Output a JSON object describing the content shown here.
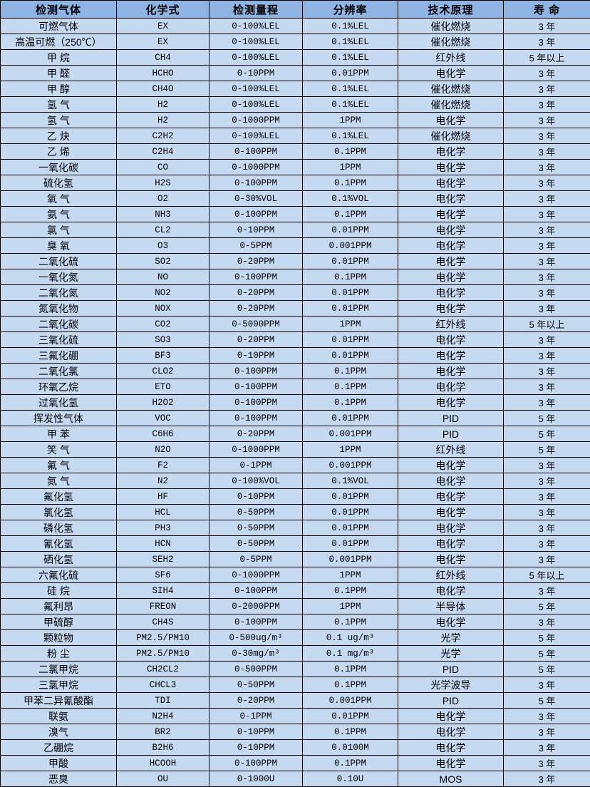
{
  "colors": {
    "header_bg": "#8DB4E2",
    "row_bg": "#C5D9F1",
    "border": "#000000",
    "text": "#000000"
  },
  "table": {
    "headers": [
      "检测气体",
      "化学式",
      "检测量程",
      "分辨率",
      "技术原理",
      "寿 命"
    ],
    "rows": [
      [
        "可燃气体",
        "EX",
        "0-100%LEL",
        "0.1%LEL",
        "催化燃烧",
        "3 年"
      ],
      [
        "高温可燃（250℃）",
        "EX",
        "0-100%LEL",
        "0.1%LEL",
        "催化燃烧",
        "3 年"
      ],
      [
        "甲 烷",
        "CH4",
        "0-100%LEL",
        "0.1%LEL",
        "红外线",
        "5 年以上"
      ],
      [
        "甲 醛",
        "HCHO",
        "0-10PPM",
        "0.01PPM",
        "电化学",
        "3 年"
      ],
      [
        "甲 醇",
        "CH4O",
        "0-100%LEL",
        "0.1%LEL",
        "催化燃烧",
        "3 年"
      ],
      [
        "氢 气",
        "H2",
        "0-100%LEL",
        "0.1%LEL",
        "催化燃烧",
        "3 年"
      ],
      [
        "氢 气",
        "H2",
        "0-1000PPM",
        "1PPM",
        "电化学",
        "3 年"
      ],
      [
        "乙 炔",
        "C2H2",
        "0-100%LEL",
        "0.1%LEL",
        "催化燃烧",
        "3 年"
      ],
      [
        "乙 烯",
        "C2H4",
        "0-100PPM",
        "0.1PPM",
        "电化学",
        "3 年"
      ],
      [
        "一氧化碳",
        "CO",
        "0-1000PPM",
        "1PPM",
        "电化学",
        "3 年"
      ],
      [
        "硫化氢",
        "H2S",
        "0-100PPM",
        "0.1PPM",
        "电化学",
        "3 年"
      ],
      [
        "氧 气",
        "O2",
        "0-30%VOL",
        "0.1%VOL",
        "电化学",
        "3 年"
      ],
      [
        "氨 气",
        "NH3",
        "0-100PPM",
        "0.1PPM",
        "电化学",
        "3 年"
      ],
      [
        "氯 气",
        "CL2",
        "0-10PPM",
        "0.01PPM",
        "电化学",
        "3 年"
      ],
      [
        "臭 氧",
        "O3",
        "0-5PPM",
        "0.001PPM",
        "电化学",
        "3 年"
      ],
      [
        "二氧化硫",
        "SO2",
        "0-20PPM",
        "0.01PPM",
        "电化学",
        "3 年"
      ],
      [
        "一氧化氮",
        "NO",
        "0-100PPM",
        "0.1PPM",
        "电化学",
        "3 年"
      ],
      [
        "二氧化氮",
        "NO2",
        "0-20PPM",
        "0.01PPM",
        "电化学",
        "3 年"
      ],
      [
        "氮氧化物",
        "NOX",
        "0-20PPM",
        "0.01PPM",
        "电化学",
        "3 年"
      ],
      [
        "二氧化碳",
        "CO2",
        "0-5000PPM",
        "1PPM",
        "红外线",
        "5 年以上"
      ],
      [
        "三氧化硫",
        "SO3",
        "0-20PPM",
        "0.01PPM",
        "电化学",
        "3 年"
      ],
      [
        "三氟化硼",
        "BF3",
        "0-10PPM",
        "0.01PPM",
        "电化学",
        "3 年"
      ],
      [
        "二氧化氯",
        "CLO2",
        "0-100PPM",
        "0.1PPM",
        "电化学",
        "3 年"
      ],
      [
        "环氧乙烷",
        "ETO",
        "0-100PPM",
        "0.1PPM",
        "电化学",
        "3 年"
      ],
      [
        "过氧化氢",
        "H2O2",
        "0-100PPM",
        "0.1PPM",
        "电化学",
        "3 年"
      ],
      [
        "挥发性气体",
        "VOC",
        "0-100PPM",
        "0.01PPM",
        "PID",
        "5 年"
      ],
      [
        "甲 苯",
        "C6H6",
        "0-20PPM",
        "0.001PPM",
        "PID",
        "5 年"
      ],
      [
        "笑 气",
        "N2O",
        "0-1000PPM",
        "1PPM",
        "红外线",
        "5 年"
      ],
      [
        "氟 气",
        "F2",
        "0-1PPM",
        "0.001PPM",
        "电化学",
        "3 年"
      ],
      [
        "氮 气",
        "N2",
        "0-100%VOL",
        "0.1%VOL",
        "电化学",
        "3 年"
      ],
      [
        "氟化氢",
        "HF",
        "0-10PPM",
        "0.01PPM",
        "电化学",
        "3 年"
      ],
      [
        "氯化氢",
        "HCL",
        "0-50PPM",
        "0.01PPM",
        "电化学",
        "3 年"
      ],
      [
        "磷化氢",
        "PH3",
        "0-50PPM",
        "0.01PPM",
        "电化学",
        "3 年"
      ],
      [
        "氰化氢",
        "HCN",
        "0-50PPM",
        "0.01PPM",
        "电化学",
        "3 年"
      ],
      [
        "硒化氢",
        "SEH2",
        "0-5PPM",
        "0.001PPM",
        "电化学",
        "3 年"
      ],
      [
        "六氟化硫",
        "SF6",
        "0-1000PPM",
        "1PPM",
        "红外线",
        "5 年以上"
      ],
      [
        "硅 烷",
        "SIH4",
        "0-100PPM",
        "0.1PPM",
        "电化学",
        "3 年"
      ],
      [
        "氟利昂",
        "FREON",
        "0-2000PPM",
        "1PPM",
        "半导体",
        "5 年"
      ],
      [
        "甲硫醇",
        "CH4S",
        "0-100PPM",
        "0.1PPM",
        "电化学",
        "3 年"
      ],
      [
        "颗粒物",
        "PM2.5/PM10",
        "0-500ug/m³",
        "0.1 ug/m³",
        "光学",
        "5 年"
      ],
      [
        "粉 尘",
        "PM2.5/PM10",
        "0-30mg/m³",
        "0.1 mg/m³",
        "光学",
        "5 年"
      ],
      [
        "二氯甲烷",
        "CH2CL2",
        "0-500PPM",
        "0.1PPM",
        "PID",
        "5 年"
      ],
      [
        "三氯甲烷",
        "CHCL3",
        "0-50PPM",
        "0.1PPM",
        "光学波导",
        "3 年"
      ],
      [
        "甲苯二异氰酸酯",
        "TDI",
        "0-20PPM",
        "0.001PPM",
        "PID",
        "5 年"
      ],
      [
        "联氨",
        "N2H4",
        "0-1PPM",
        "0.01PPM",
        "电化学",
        "3 年"
      ],
      [
        "溴气",
        "BR2",
        "0-10PPM",
        "0.1PPM",
        "电化学",
        "3 年"
      ],
      [
        "乙硼烷",
        "B2H6",
        "0-10PPM",
        "0.0100M",
        "电化学",
        "3 年"
      ],
      [
        "甲酸",
        "HCOOH",
        "0-100PPM",
        "0.1PPM",
        "电化学",
        "3 年"
      ],
      [
        "恶臭",
        "OU",
        "0-1000U",
        "0.10U",
        "MOS",
        "3 年"
      ]
    ]
  }
}
